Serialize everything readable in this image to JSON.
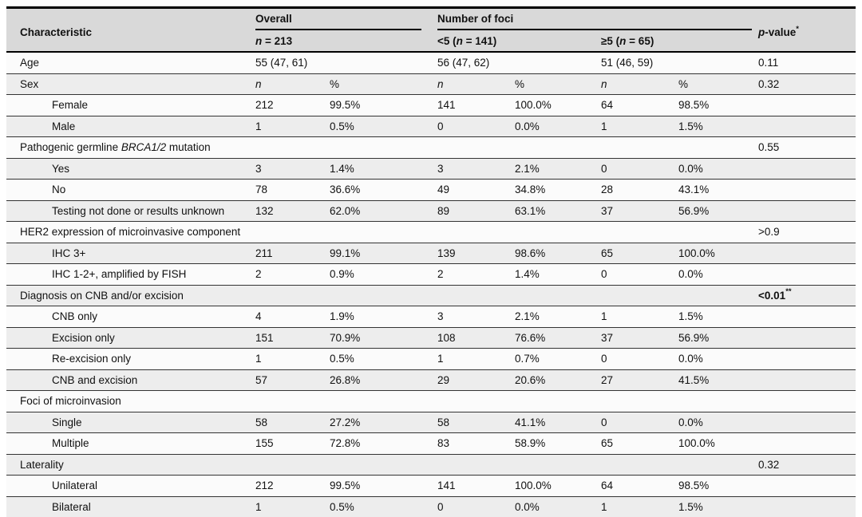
{
  "table": {
    "colors": {
      "header_bg": "#d9d9d9",
      "row_bg": "#fbfbfb",
      "row_alt_bg": "#ededed",
      "rule": "#333333",
      "heavy_rule": "#000000",
      "text": "#111111"
    },
    "header": {
      "characteristic": "Characteristic",
      "overall": "Overall",
      "overall_sub": [
        {
          "t": "n",
          "i": true
        },
        {
          "t": " = 213"
        }
      ],
      "foci": "Number of foci",
      "foci_sub_lt5": [
        {
          "t": "<5 ("
        },
        {
          "t": "n",
          "i": true
        },
        {
          "t": " = 141)"
        }
      ],
      "foci_sub_ge5": [
        {
          "t": "≥5 ("
        },
        {
          "t": "n",
          "i": true
        },
        {
          "t": " = 65)"
        }
      ],
      "pvalue": [
        {
          "t": "p",
          "i": true
        },
        {
          "t": "-value"
        },
        {
          "t": "*",
          "sup": true
        }
      ]
    },
    "rows": [
      {
        "label": "Age",
        "wide": [
          "55 (47, 61)",
          "56 (47, 62)",
          "51 (46, 59)"
        ],
        "p": "0.11"
      },
      {
        "label": "Sex",
        "cells": [
          [
            {
              "t": "n",
              "i": true
            }
          ],
          "%",
          [
            {
              "t": "n",
              "i": true
            }
          ],
          "%",
          [
            {
              "t": "n",
              "i": true
            }
          ],
          "%"
        ],
        "p": "0.32"
      },
      {
        "label": "Female",
        "indent": true,
        "cells": [
          "212",
          "99.5%",
          "141",
          "100.0%",
          "64",
          "98.5%"
        ],
        "p": ""
      },
      {
        "label": "Male",
        "indent": true,
        "cells": [
          "1",
          "0.5%",
          "0",
          "0.0%",
          "1",
          "1.5%"
        ],
        "p": ""
      },
      {
        "label": [
          {
            "t": "Pathogenic germline "
          },
          {
            "t": "BRCA1/2",
            "i": true
          },
          {
            "t": " mutation"
          }
        ],
        "section": true,
        "p": "0.55"
      },
      {
        "label": "Yes",
        "indent": true,
        "cells": [
          "3",
          "1.4%",
          "3",
          "2.1%",
          "0",
          "0.0%"
        ],
        "p": ""
      },
      {
        "label": "No",
        "indent": true,
        "cells": [
          "78",
          "36.6%",
          "49",
          "34.8%",
          "28",
          "43.1%"
        ],
        "p": ""
      },
      {
        "label": "Testing not done or results unknown",
        "indent": true,
        "cells": [
          "132",
          "62.0%",
          "89",
          "63.1%",
          "37",
          "56.9%"
        ],
        "p": ""
      },
      {
        "label": "HER2 expression of microinvasive component",
        "section": true,
        "p": ">0.9"
      },
      {
        "label": "IHC 3+",
        "indent": true,
        "cells": [
          "211",
          "99.1%",
          "139",
          "98.6%",
          "65",
          "100.0%"
        ],
        "p": ""
      },
      {
        "label": "IHC 1-2+, amplified by FISH",
        "indent": true,
        "cells": [
          "2",
          "0.9%",
          "2",
          "1.4%",
          "0",
          "0.0%"
        ],
        "p": ""
      },
      {
        "label": "Diagnosis on CNB and/or excision",
        "section": true,
        "p": [
          {
            "t": "<0.01",
            "b": true
          },
          {
            "t": "**",
            "b": true,
            "sup": true
          }
        ]
      },
      {
        "label": "CNB only",
        "indent": true,
        "cells": [
          "4",
          "1.9%",
          "3",
          "2.1%",
          "1",
          "1.5%"
        ],
        "p": ""
      },
      {
        "label": "Excision only",
        "indent": true,
        "cells": [
          "151",
          "70.9%",
          "108",
          "76.6%",
          "37",
          "56.9%"
        ],
        "p": ""
      },
      {
        "label": "Re-excision only",
        "indent": true,
        "cells": [
          "1",
          "0.5%",
          "1",
          "0.7%",
          "0",
          "0.0%"
        ],
        "p": ""
      },
      {
        "label": "CNB and excision",
        "indent": true,
        "cells": [
          "57",
          "26.8%",
          "29",
          "20.6%",
          "27",
          "41.5%"
        ],
        "p": ""
      },
      {
        "label": "Foci of microinvasion",
        "section": true,
        "p": ""
      },
      {
        "label": "Single",
        "indent": true,
        "cells": [
          "58",
          "27.2%",
          "58",
          "41.1%",
          "0",
          "0.0%"
        ],
        "p": ""
      },
      {
        "label": "Multiple",
        "indent": true,
        "cells": [
          "155",
          "72.8%",
          "83",
          "58.9%",
          "65",
          "100.0%"
        ],
        "p": ""
      },
      {
        "label": "Laterality",
        "section": true,
        "p": "0.32"
      },
      {
        "label": "Unilateral",
        "indent": true,
        "cells": [
          "212",
          "99.5%",
          "141",
          "100.0%",
          "64",
          "98.5%"
        ],
        "p": ""
      },
      {
        "label": "Bilateral",
        "indent": true,
        "cells": [
          "1",
          "0.5%",
          "0",
          "0.0%",
          "1",
          "1.5%"
        ],
        "p": ""
      }
    ]
  }
}
